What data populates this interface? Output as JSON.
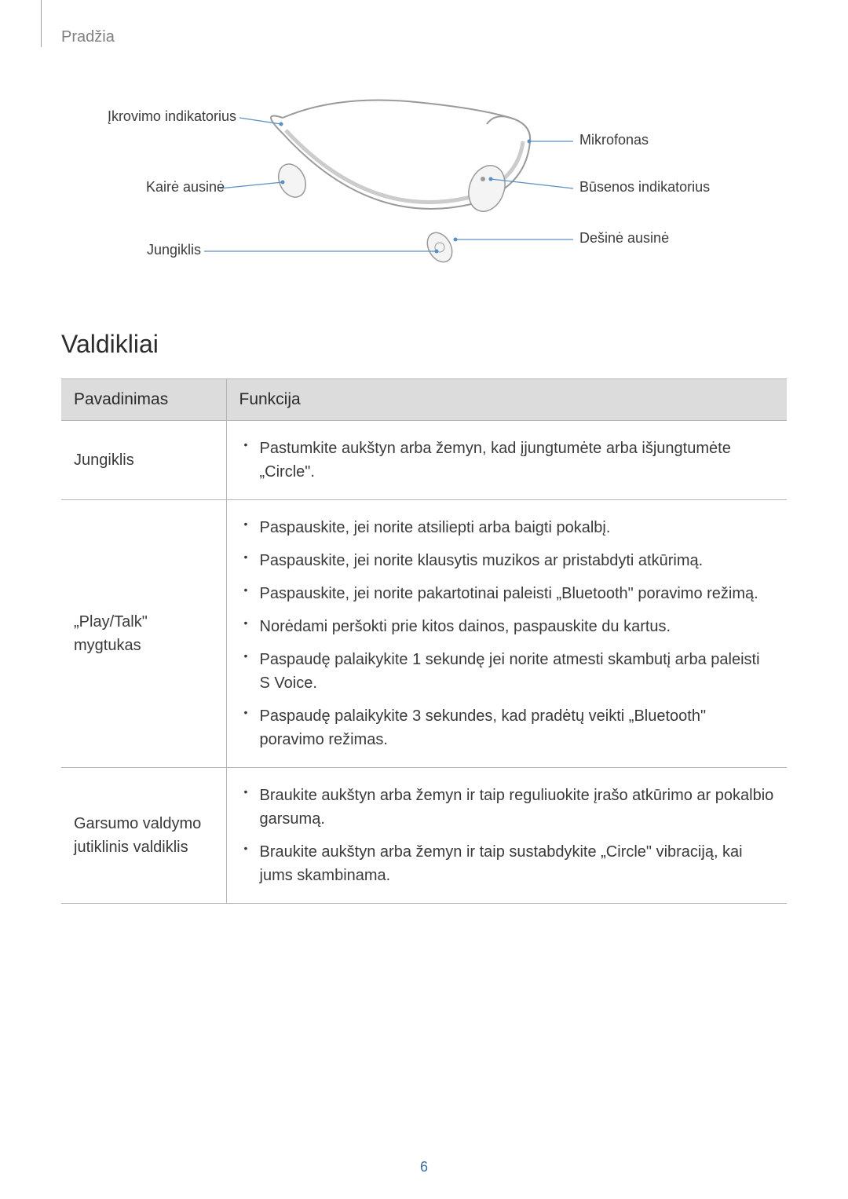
{
  "breadcrumb": "Pradžia",
  "diagram": {
    "labels": {
      "charge_indicator": "Įkrovimo indikatorius",
      "left_earbud": "Kairė ausinė",
      "switch": "Jungiklis",
      "microphone": "Mikrofonas",
      "status_indicator": "Būsenos indikatorius",
      "right_earbud": "Dešinė ausinė"
    },
    "colors": {
      "line": "#5a8fc3",
      "device_fill": "#f4f4f4",
      "device_stroke": "#9a9a9a"
    }
  },
  "heading": "Valdikliai",
  "table": {
    "header": {
      "col1": "Pavadinimas",
      "col2": "Funkcija"
    },
    "rows": [
      {
        "name": "Jungiklis",
        "items": [
          "Pastumkite aukštyn arba žemyn, kad įjungtumėte arba išjungtumėte „Circle\"."
        ]
      },
      {
        "name": "„Play/Talk\" mygtukas",
        "items": [
          "Paspauskite, jei norite atsiliepti arba baigti pokalbį.",
          "Paspauskite, jei norite klausytis muzikos ar pristabdyti atkūrimą.",
          "Paspauskite, jei norite pakartotinai paleisti „Bluetooth\" poravimo režimą.",
          "Norėdami peršokti prie kitos dainos, paspauskite du kartus.",
          "Paspaudę palaikykite 1 sekundę jei norite atmesti skambutį arba paleisti S Voice.",
          "Paspaudę palaikykite 3 sekundes, kad pradėtų veikti „Bluetooth\" poravimo režimas."
        ]
      },
      {
        "name": "Garsumo valdymo jutiklinis valdiklis",
        "items": [
          "Braukite aukštyn arba žemyn ir taip reguliuokite įrašo atkūrimo ar pokalbio garsumą.",
          "Braukite aukštyn arba žemyn ir taip sustabdykite „Circle\" vibraciją, kai jums skambinama."
        ]
      }
    ]
  },
  "page_number": "6"
}
